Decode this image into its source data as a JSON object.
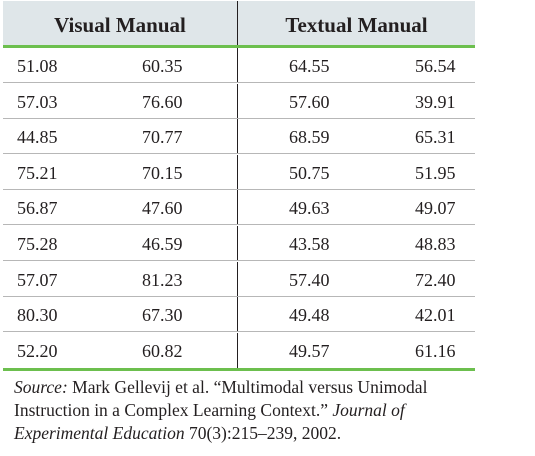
{
  "table": {
    "headers": [
      "Visual Manual",
      "Textual Manual"
    ],
    "rows": [
      [
        "51.08",
        "60.35",
        "64.55",
        "56.54"
      ],
      [
        "57.03",
        "76.60",
        "57.60",
        "39.91"
      ],
      [
        "44.85",
        "70.77",
        "68.59",
        "65.31"
      ],
      [
        "75.21",
        "70.15",
        "50.75",
        "51.95"
      ],
      [
        "56.87",
        "47.60",
        "49.63",
        "49.07"
      ],
      [
        "75.28",
        "46.59",
        "43.58",
        "48.83"
      ],
      [
        "57.07",
        "81.23",
        "57.40",
        "72.40"
      ],
      [
        "80.30",
        "67.30",
        "49.48",
        "42.01"
      ],
      [
        "52.20",
        "60.82",
        "49.57",
        "61.16"
      ]
    ]
  },
  "source": {
    "label": "Source:",
    "text1": " Mark Gellevij et al. “Multimodal versus Unimodal Instruction in a Complex Learning Context.” ",
    "journal": "Journal of Experimental Education",
    "text2": " 70(3):215–239, 2002."
  },
  "colors": {
    "header_bg": "#dfe6e9",
    "accent_rule": "#6cbf4e",
    "row_rule": "#b7b7b7"
  }
}
